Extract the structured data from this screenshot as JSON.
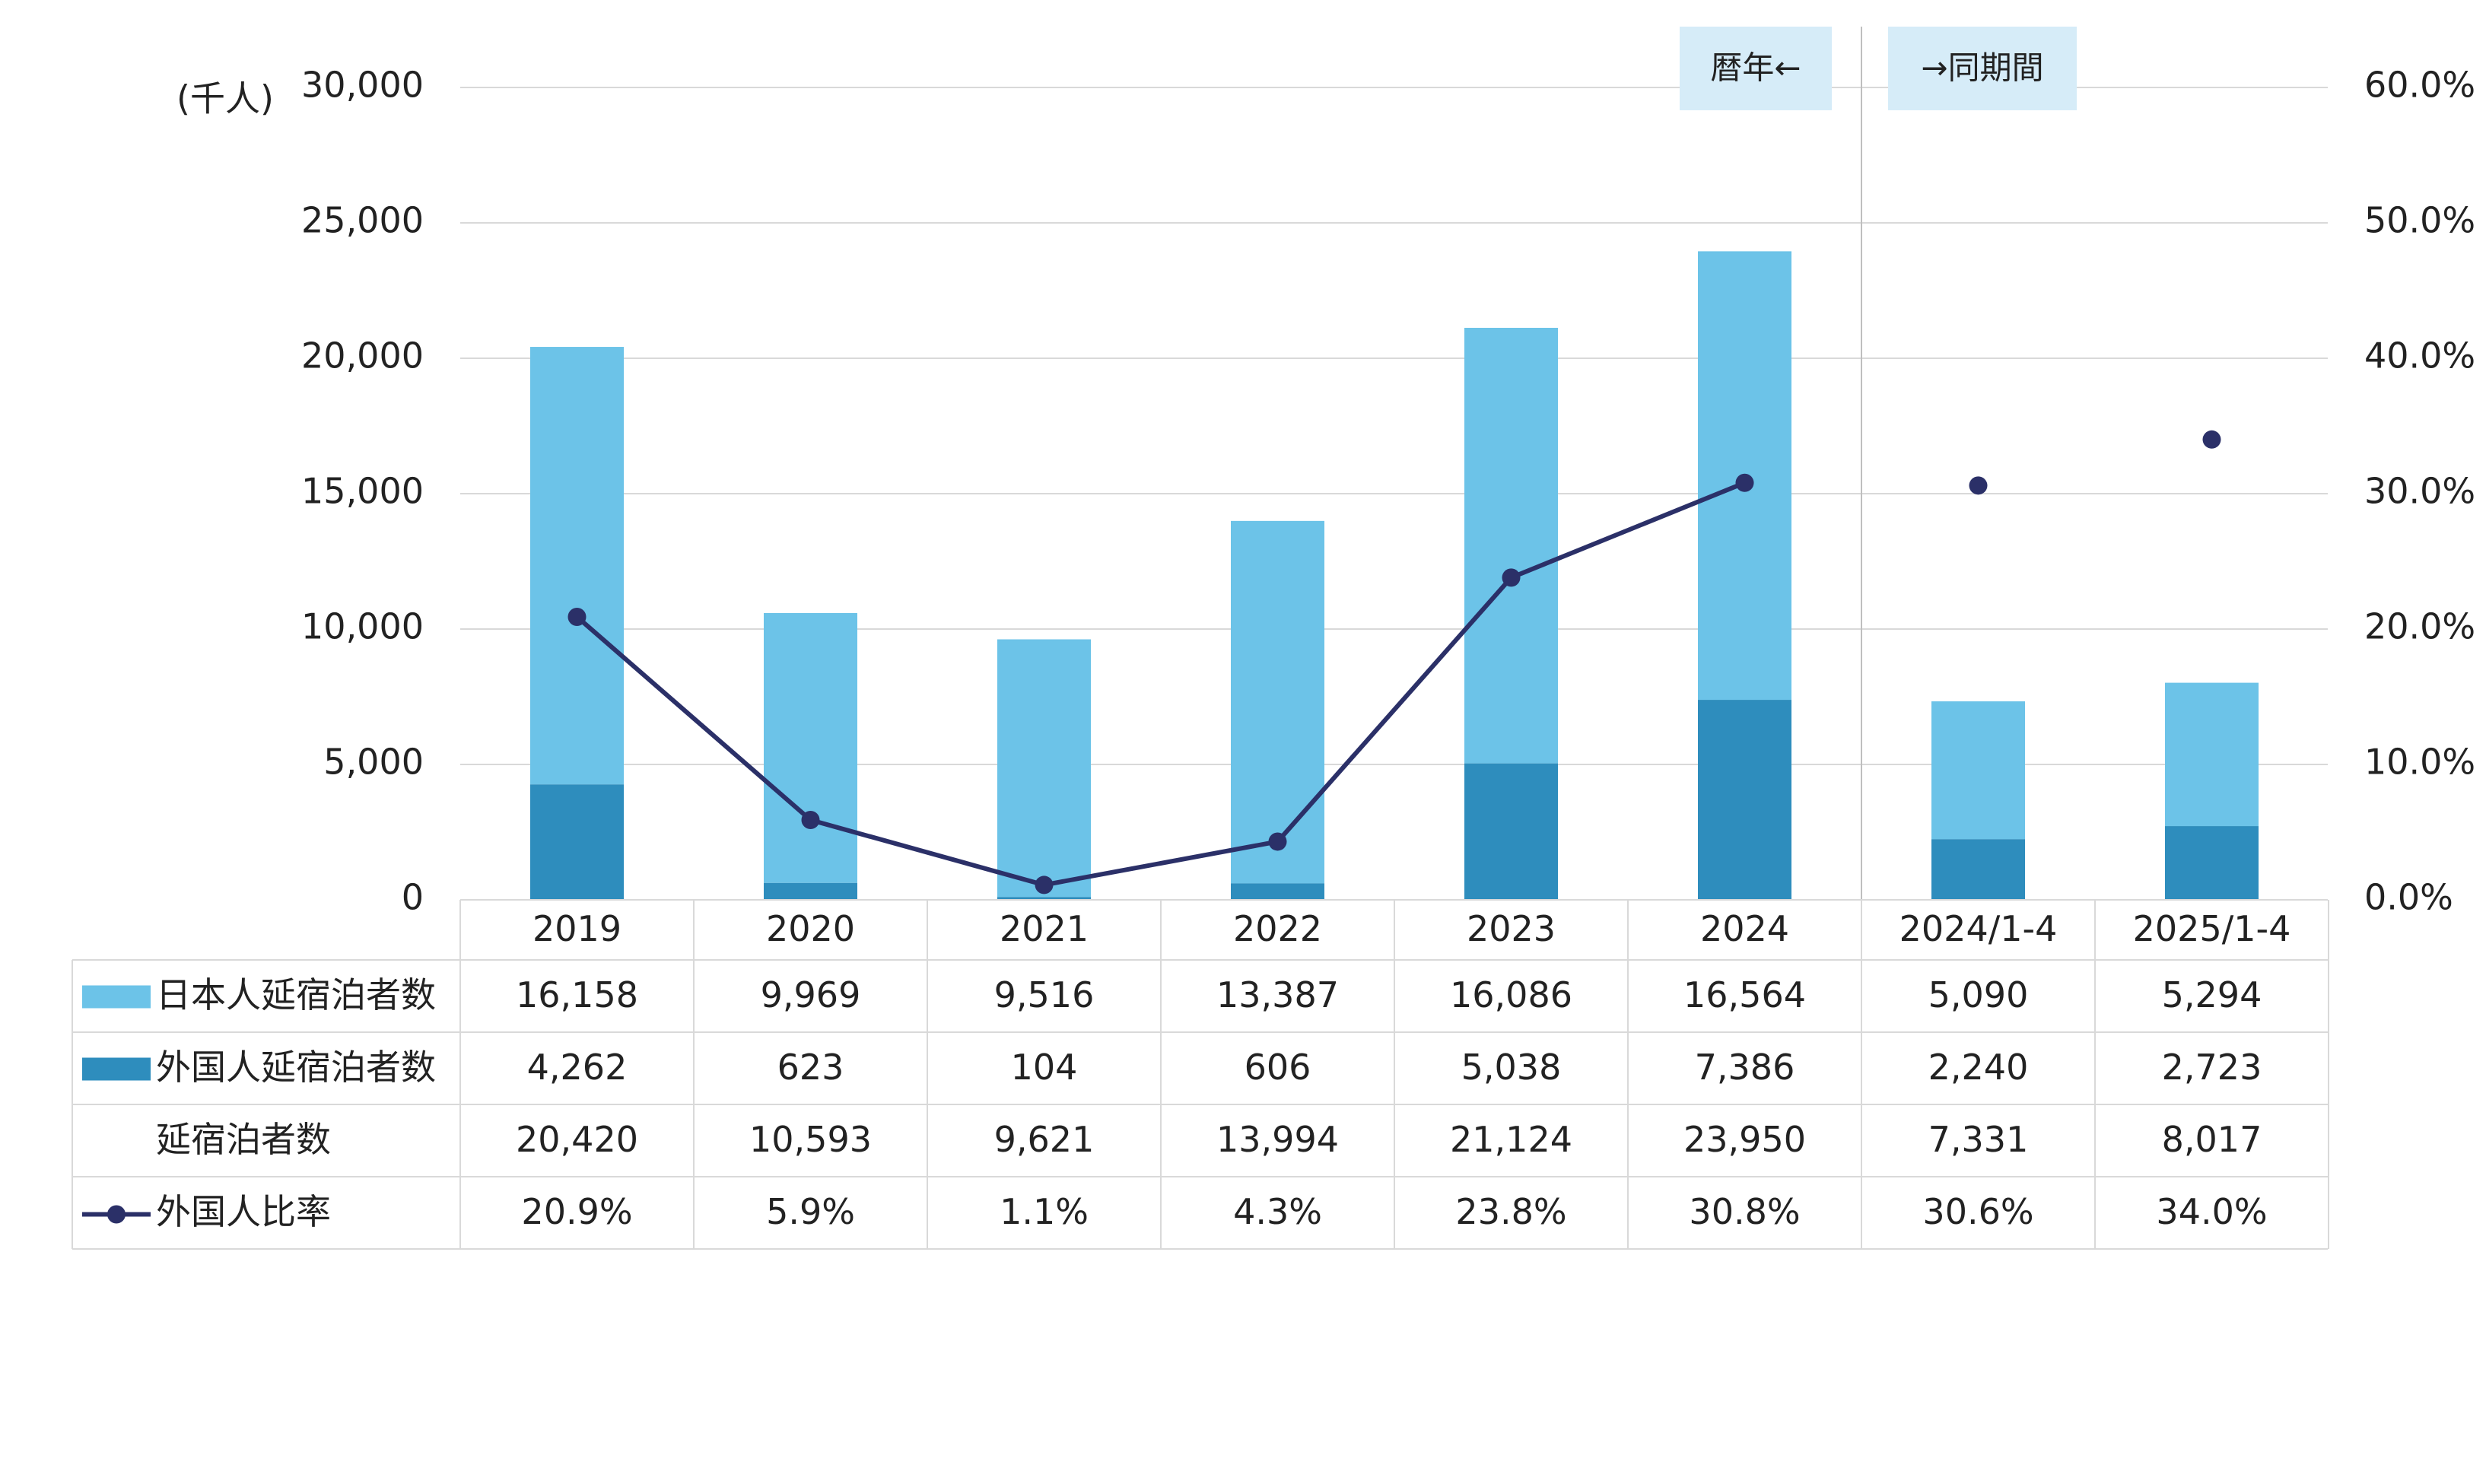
{
  "chart_data": {
    "type": "bar",
    "stacked": true,
    "categories": [
      "2019",
      "2020",
      "2021",
      "2022",
      "2023",
      "2024",
      "2024/1-4",
      "2025/1-4"
    ],
    "series": [
      {
        "name": "日本人延宿泊者数",
        "type": "bar",
        "color": "#6CC3E8",
        "values": [
          16158,
          9969,
          9516,
          13387,
          16086,
          16564,
          5090,
          5294
        ],
        "labels": [
          "16,158",
          "9,969",
          "9,516",
          "13,387",
          "16,086",
          "16,564",
          "5,090",
          "5,294"
        ]
      },
      {
        "name": "外国人延宿泊者数",
        "type": "bar",
        "color": "#2E8DBD",
        "values": [
          4262,
          623,
          104,
          606,
          5038,
          7386,
          2240,
          2723
        ],
        "labels": [
          "4,262",
          "623",
          "104",
          "606",
          "5,038",
          "7,386",
          "2,240",
          "2,723"
        ]
      },
      {
        "name": "延宿泊者数",
        "type": "total",
        "values": [
          20420,
          10593,
          9621,
          13994,
          21124,
          23950,
          7331,
          8017
        ],
        "labels": [
          "20,420",
          "10,593",
          "9,621",
          "13,994",
          "21,124",
          "23,950",
          "7,331",
          "8,017"
        ]
      },
      {
        "name": "外国人比率",
        "type": "line",
        "axis": "right",
        "color": "#2B3068",
        "values": [
          20.9,
          5.9,
          1.1,
          4.3,
          23.8,
          30.8,
          30.6,
          34.0
        ],
        "labels": [
          "20.9%",
          "5.9%",
          "1.1%",
          "4.3%",
          "23.8%",
          "30.8%",
          "30.6%",
          "34.0%"
        ],
        "connected_through": 5
      }
    ],
    "y_left": {
      "unit": "(千人)",
      "ylim": [
        0,
        30000
      ],
      "ticks": [
        "0",
        "5,000",
        "10,000",
        "15,000",
        "20,000",
        "25,000",
        "30,000"
      ]
    },
    "y_right": {
      "ylim": [
        0,
        60
      ],
      "ticks": [
        "0.0%",
        "10.0%",
        "20.0%",
        "30.0%",
        "40.0%",
        "50.0%",
        "60.0%"
      ]
    },
    "grid": true,
    "annotations": [
      {
        "text": "暦年←"
      },
      {
        "text": "→同期間"
      }
    ],
    "data_table": true
  }
}
